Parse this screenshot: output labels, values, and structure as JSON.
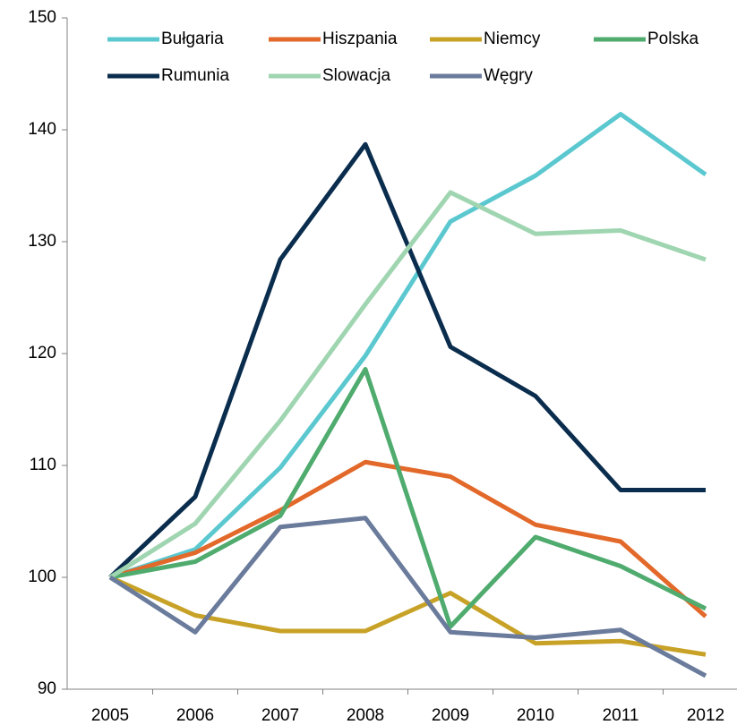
{
  "chart_data": {
    "type": "line",
    "categories": [
      "2005",
      "2006",
      "2007",
      "2008",
      "2009",
      "2010",
      "2011",
      "2012"
    ],
    "series": [
      {
        "name": "Bułgaria",
        "color": "#5bc8d0",
        "values": [
          100,
          102.5,
          109.8,
          119.8,
          131.8,
          135.9,
          141.4,
          136
        ]
      },
      {
        "name": "Hiszpania",
        "color": "#e2692a",
        "values": [
          100,
          102.2,
          106,
          110.3,
          109,
          104.7,
          103.2,
          96.5
        ]
      },
      {
        "name": "Niemcy",
        "color": "#c8a227",
        "values": [
          100,
          96.6,
          95.2,
          95.2,
          98.6,
          94.1,
          94.3,
          93.1
        ]
      },
      {
        "name": "Polska",
        "color": "#4fab6e",
        "values": [
          100,
          101.4,
          105.5,
          118.6,
          95.6,
          103.6,
          101,
          97.2
        ]
      },
      {
        "name": "Rumunia",
        "color": "#0a2d4e",
        "values": [
          100,
          107.2,
          128.4,
          138.7,
          120.6,
          116.2,
          107.8,
          107.8
        ]
      },
      {
        "name": "Slowacja",
        "color": "#9fd5b0",
        "values": [
          100,
          104.8,
          114,
          124.4,
          134.4,
          130.7,
          131,
          128.4
        ]
      },
      {
        "name": "Węgry",
        "color": "#6a7b9c",
        "values": [
          100,
          95.1,
          104.5,
          105.3,
          95.1,
          94.6,
          95.3,
          91.2
        ]
      }
    ],
    "ylim": [
      90,
      150
    ],
    "yticks": [
      90,
      100,
      110,
      120,
      130,
      140,
      150
    ],
    "legend": "top"
  }
}
